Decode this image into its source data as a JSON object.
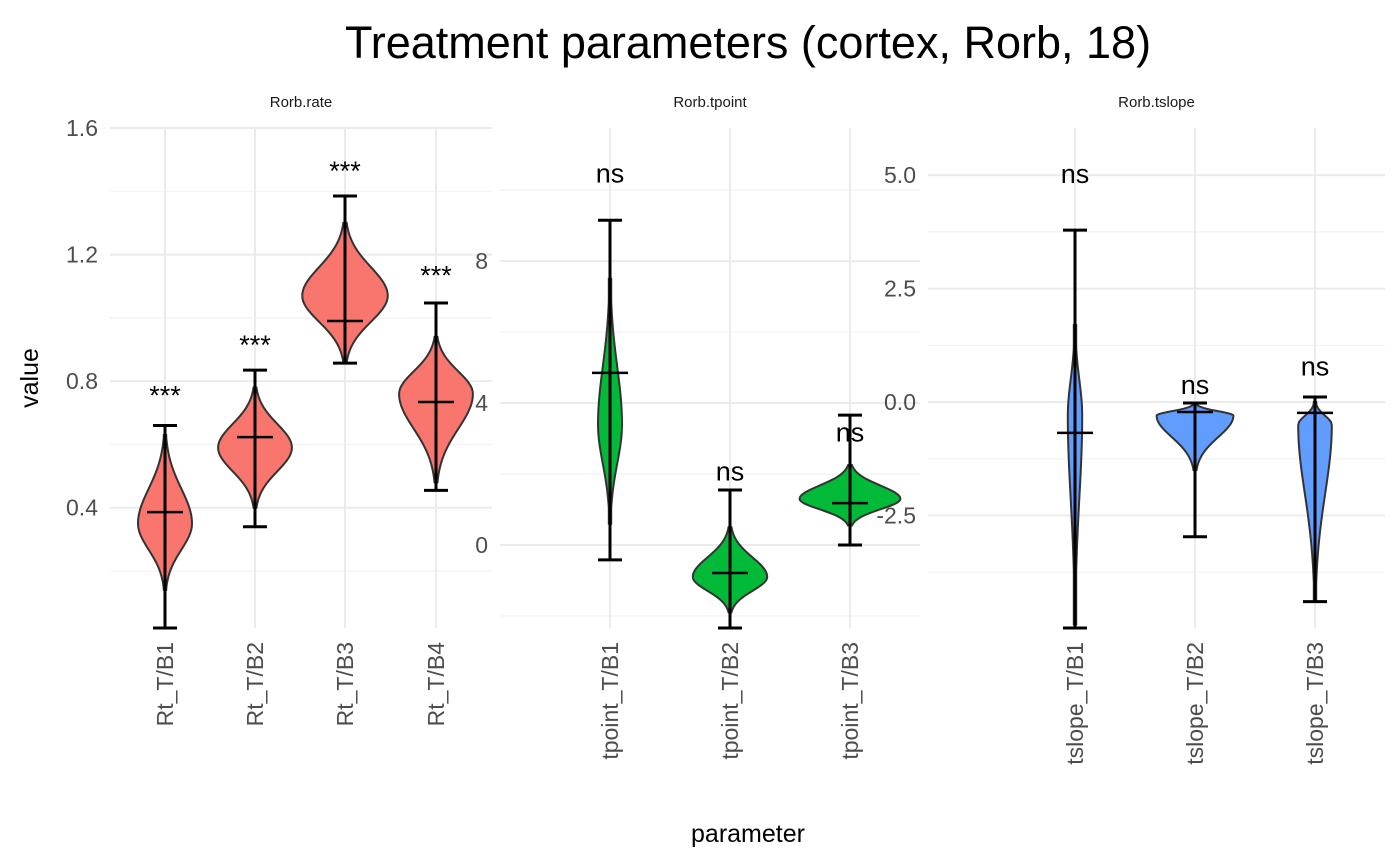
{
  "chart_data": {
    "type": "violin",
    "title": "Treatment parameters (cortex, Rorb, 18)",
    "xlabel": "parameter",
    "ylabel": "value",
    "grid": true,
    "legend": "none",
    "panels": [
      {
        "strip": "Rorb.rate",
        "color": "#F8766D",
        "ylim": [
          0.02,
          1.6
        ],
        "yticks": [
          0.4,
          0.8,
          1.2,
          1.6
        ],
        "ytick_labels": [
          "0.4",
          "0.8",
          "1.2",
          "1.6"
        ],
        "minor": [
          0.2,
          0.6,
          1.0,
          1.4
        ],
        "categories": [
          {
            "name": "Rt_T/B1",
            "whisker_min": 0.02,
            "whisker_max": 0.66,
            "mean": 0.386,
            "violin_min": 0.14,
            "violin_max": 0.63,
            "peak": 0.35,
            "density": 0.6,
            "label": "***",
            "label_y": 0.77
          },
          {
            "name": "Rt_T/B2",
            "whisker_min": 0.34,
            "whisker_max": 0.835,
            "mean": 0.623,
            "violin_min": 0.4,
            "violin_max": 0.78,
            "peak": 0.59,
            "density": 0.82,
            "label": "***",
            "label_y": 0.93
          },
          {
            "name": "Rt_T/B3",
            "whisker_min": 0.857,
            "whisker_max": 1.385,
            "mean": 0.99,
            "violin_min": 0.86,
            "violin_max": 1.3,
            "peak": 1.07,
            "density": 0.95,
            "label": "***",
            "label_y": 1.48
          },
          {
            "name": "Rt_T/B4",
            "whisker_min": 0.455,
            "whisker_max": 1.047,
            "mean": 0.734,
            "violin_min": 0.48,
            "violin_max": 0.94,
            "peak": 0.76,
            "density": 0.82,
            "label": "***",
            "label_y": 1.15
          }
        ]
      },
      {
        "strip": "Rorb.tpoint",
        "color": "#00BA38",
        "ylim": [
          -2.34,
          11.75
        ],
        "yticks": [
          0,
          4,
          8
        ],
        "ytick_labels": [
          "0",
          "4",
          "8"
        ],
        "minor": [
          -2,
          2,
          6,
          10
        ],
        "categories": [
          {
            "name": "tpoint_T/B1",
            "whisker_min": -0.42,
            "whisker_max": 9.15,
            "mean": 4.85,
            "violin_min": 0.6,
            "violin_max": 7.5,
            "peak": 3.4,
            "density": 0.2,
            "label": "ns",
            "label_y": 10.5
          },
          {
            "name": "tpoint_T/B2",
            "whisker_min": -2.34,
            "whisker_max": 1.55,
            "mean": -0.79,
            "violin_min": -1.9,
            "violin_max": 0.5,
            "peak": -0.9,
            "density": 0.62,
            "label": "ns",
            "label_y": 2.1
          },
          {
            "name": "tpoint_T/B3",
            "whisker_min": 0,
            "whisker_max": 3.66,
            "mean": 1.18,
            "violin_min": 0.55,
            "violin_max": 2.25,
            "peak": 1.3,
            "density": 0.84,
            "label": "ns",
            "label_y": 3.2
          }
        ]
      },
      {
        "strip": "Rorb.tslope",
        "color": "#619CFF",
        "ylim": [
          -4.98,
          6.04
        ],
        "yticks": [
          -2.5,
          0,
          2.5,
          5
        ],
        "ytick_labels": [
          "-2.5",
          "0.0",
          "2.5",
          "5.0"
        ],
        "minor": [
          -3.75,
          -1.25,
          1.25,
          3.75
        ],
        "categories": [
          {
            "name": "tslope_T/B1",
            "whisker_min": -4.98,
            "whisker_max": 3.79,
            "mean": -0.68,
            "violin_min": -4.9,
            "violin_max": 1.7,
            "peak": -0.3,
            "density": 0.12,
            "label": "ns",
            "label_y": 5.05
          },
          {
            "name": "tslope_T/B2",
            "whisker_min": -2.97,
            "whisker_max": -0.02,
            "mean": -0.22,
            "violin_min": -1.5,
            "violin_max": -0.05,
            "peak": -0.3,
            "density": 0.64,
            "label": "ns",
            "label_y": 0.4
          },
          {
            "name": "tslope_T/B3",
            "whisker_min": -4.4,
            "whisker_max": 0.11,
            "mean": -0.24,
            "violin_min": -4.36,
            "violin_max": 0.0,
            "peak": -0.5,
            "density": 0.28,
            "label": "ns",
            "label_y": 0.8
          }
        ]
      }
    ]
  }
}
